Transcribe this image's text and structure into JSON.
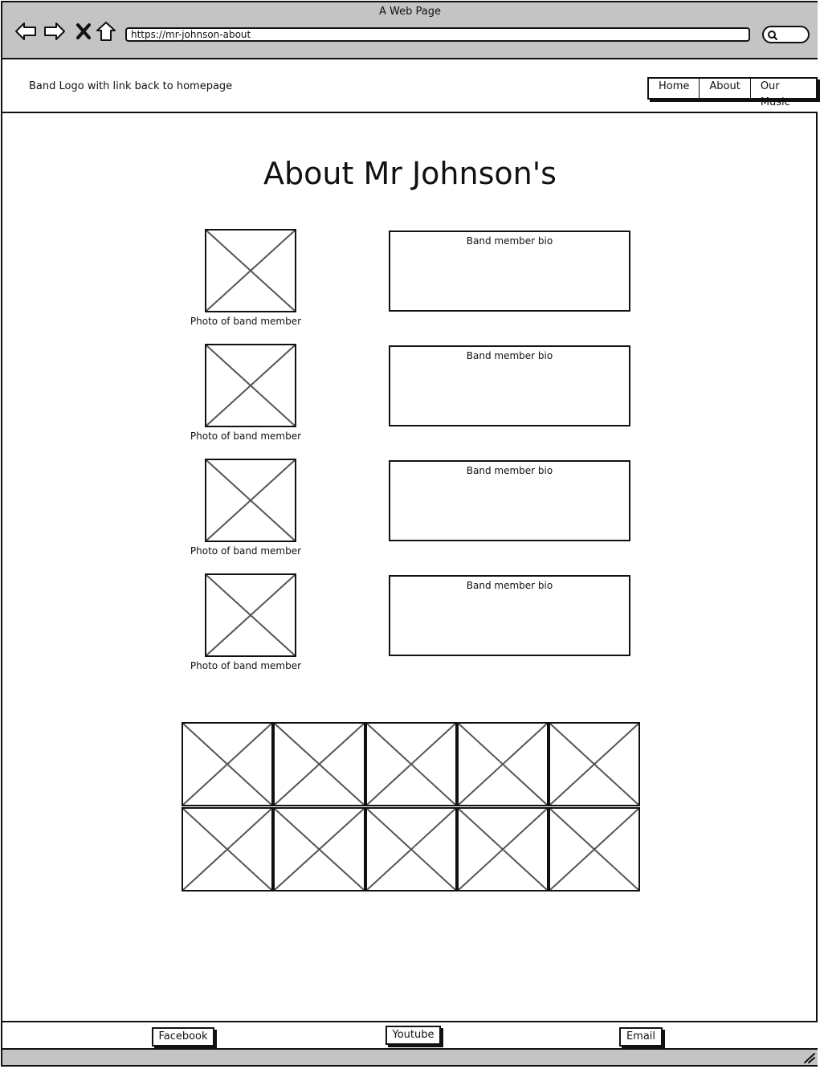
{
  "window": {
    "title": "A Web Page",
    "url": "https://mr-johnson-about"
  },
  "icons": {
    "back": "back-arrow-icon",
    "forward": "forward-arrow-icon",
    "stop": "close-icon",
    "home": "home-icon",
    "search": "search-icon",
    "resize": "resize-grip-icon",
    "placeholder": "image-placeholder-icon"
  },
  "header": {
    "logo_text": "Band Logo with link back to homepage",
    "nav": [
      "Home",
      "About",
      "Our Music"
    ]
  },
  "main": {
    "title": "About Mr Johnson's",
    "members": [
      {
        "photo_caption": "Photo of band member",
        "bio": "Band member bio"
      },
      {
        "photo_caption": "Photo of band member",
        "bio": "Band member bio"
      },
      {
        "photo_caption": "Photo of band member",
        "bio": "Band member bio"
      },
      {
        "photo_caption": "Photo of band member",
        "bio": "Band member bio"
      }
    ]
  },
  "footer": {
    "links": [
      "Facebook",
      "Youtube",
      "Email"
    ]
  }
}
